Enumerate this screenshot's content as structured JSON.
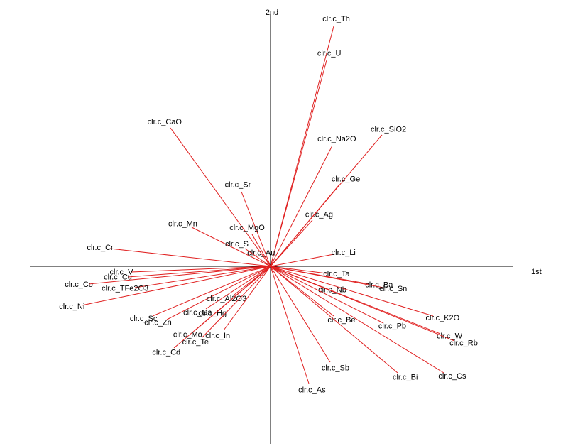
{
  "chart_data": {
    "type": "biplot",
    "x_label": "1st",
    "y_label": "2nd",
    "xlim": [
      -339,
      341
    ],
    "ylim": [
      -250,
      355
    ],
    "color": "#e02020",
    "points": [
      {
        "name": "clr.c_Th",
        "x": 89,
        "y": 338
      },
      {
        "name": "clr.c_U",
        "x": 79,
        "y": 290
      },
      {
        "name": "clr.c_Na2O",
        "x": 87,
        "y": 170
      },
      {
        "name": "clr.c_SiO2",
        "x": 157,
        "y": 185
      },
      {
        "name": "clr.c_Ge",
        "x": 97,
        "y": 115
      },
      {
        "name": "clr.c_Ag",
        "x": 59,
        "y": 65
      },
      {
        "name": "clr.c_Li",
        "x": 89,
        "y": 17
      },
      {
        "name": "clr.c_Au",
        "x": -6,
        "y": 10
      },
      {
        "name": "clr.c_CaO",
        "x": -141,
        "y": 195
      },
      {
        "name": "clr.c_Sr",
        "x": -41,
        "y": 105
      },
      {
        "name": "clr.c_Mn",
        "x": -111,
        "y": 55
      },
      {
        "name": "clr.c_MgO",
        "x": -26,
        "y": 45
      },
      {
        "name": "clr.c_S",
        "x": -36,
        "y": 25
      },
      {
        "name": "clr.c_Cr",
        "x": -226,
        "y": 25
      },
      {
        "name": "clr.c_V",
        "x": -196,
        "y": -8
      },
      {
        "name": "clr.c_Cu",
        "x": -201,
        "y": -15
      },
      {
        "name": "clr.c_Co",
        "x": -256,
        "y": -25
      },
      {
        "name": "clr.c_TFe2O3",
        "x": -191,
        "y": -30
      },
      {
        "name": "clr.c_Ni",
        "x": -266,
        "y": -55
      },
      {
        "name": "clr.c_Sc",
        "x": -166,
        "y": -70
      },
      {
        "name": "clr.c_Zn",
        "x": -146,
        "y": -75
      },
      {
        "name": "clr.c_Al2O3",
        "x": -51,
        "y": -40
      },
      {
        "name": "clr.c_Ga",
        "x": -91,
        "y": -60
      },
      {
        "name": "clr.c_Hg",
        "x": -71,
        "y": -60
      },
      {
        "name": "clr.c_Mo",
        "x": -106,
        "y": -90
      },
      {
        "name": "clr.c_Te",
        "x": -96,
        "y": -100
      },
      {
        "name": "clr.c_Cd",
        "x": -136,
        "y": -115
      },
      {
        "name": "clr.c_In",
        "x": -66,
        "y": -90
      },
      {
        "name": "clr.c_Ta",
        "x": 79,
        "y": -10
      },
      {
        "name": "clr.c_Ba",
        "x": 139,
        "y": -25
      },
      {
        "name": "clr.c_Sn",
        "x": 159,
        "y": -30
      },
      {
        "name": "clr.c_Nb",
        "x": 74,
        "y": -30
      },
      {
        "name": "clr.c_K2O",
        "x": 229,
        "y": -70
      },
      {
        "name": "clr.c_Be",
        "x": 89,
        "y": -70
      },
      {
        "name": "clr.c_Pb",
        "x": 159,
        "y": -80
      },
      {
        "name": "clr.c_W",
        "x": 239,
        "y": -95
      },
      {
        "name": "clr.c_Rb",
        "x": 259,
        "y": -105
      },
      {
        "name": "clr.c_Sb",
        "x": 84,
        "y": -135
      },
      {
        "name": "clr.c_Bi",
        "x": 179,
        "y": -150
      },
      {
        "name": "clr.c_Cs",
        "x": 244,
        "y": -150
      },
      {
        "name": "clr.c_As",
        "x": 54,
        "y": -165
      }
    ]
  }
}
